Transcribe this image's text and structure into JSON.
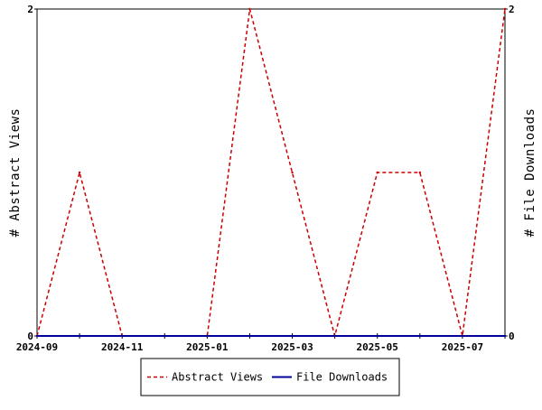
{
  "chart_data": {
    "type": "line",
    "x": [
      "2024-09",
      "2024-10",
      "2024-11",
      "2024-12",
      "2025-01",
      "2025-02",
      "2025-03",
      "2025-04",
      "2025-05",
      "2025-06",
      "2025-07",
      "2025-08"
    ],
    "series": [
      {
        "name": "Abstract Views",
        "axis": "left",
        "color": "#cc0000",
        "line_style": "dashed",
        "values": [
          0,
          1,
          0,
          0,
          0,
          2,
          1,
          0,
          1,
          1,
          0,
          2
        ]
      },
      {
        "name": "File Downloads",
        "axis": "right",
        "color": "#000099",
        "line_style": "solid",
        "values": [
          0,
          0,
          0,
          0,
          0,
          0,
          0,
          0,
          0,
          0,
          0,
          0
        ]
      }
    ],
    "x_tick_labels": [
      "2024-09",
      "2024-11",
      "2025-01",
      "2025-03",
      "2025-05",
      "2025-07"
    ],
    "ylabel": "# Abstract Views",
    "y2label": "# File Downloads",
    "ylim": [
      0,
      2
    ],
    "y2lim": [
      0,
      2
    ],
    "y_tick_labels": [
      "0",
      "2"
    ],
    "y2_tick_labels": [
      "0",
      "2"
    ],
    "grid": false,
    "legend_position": "bottom-center"
  }
}
